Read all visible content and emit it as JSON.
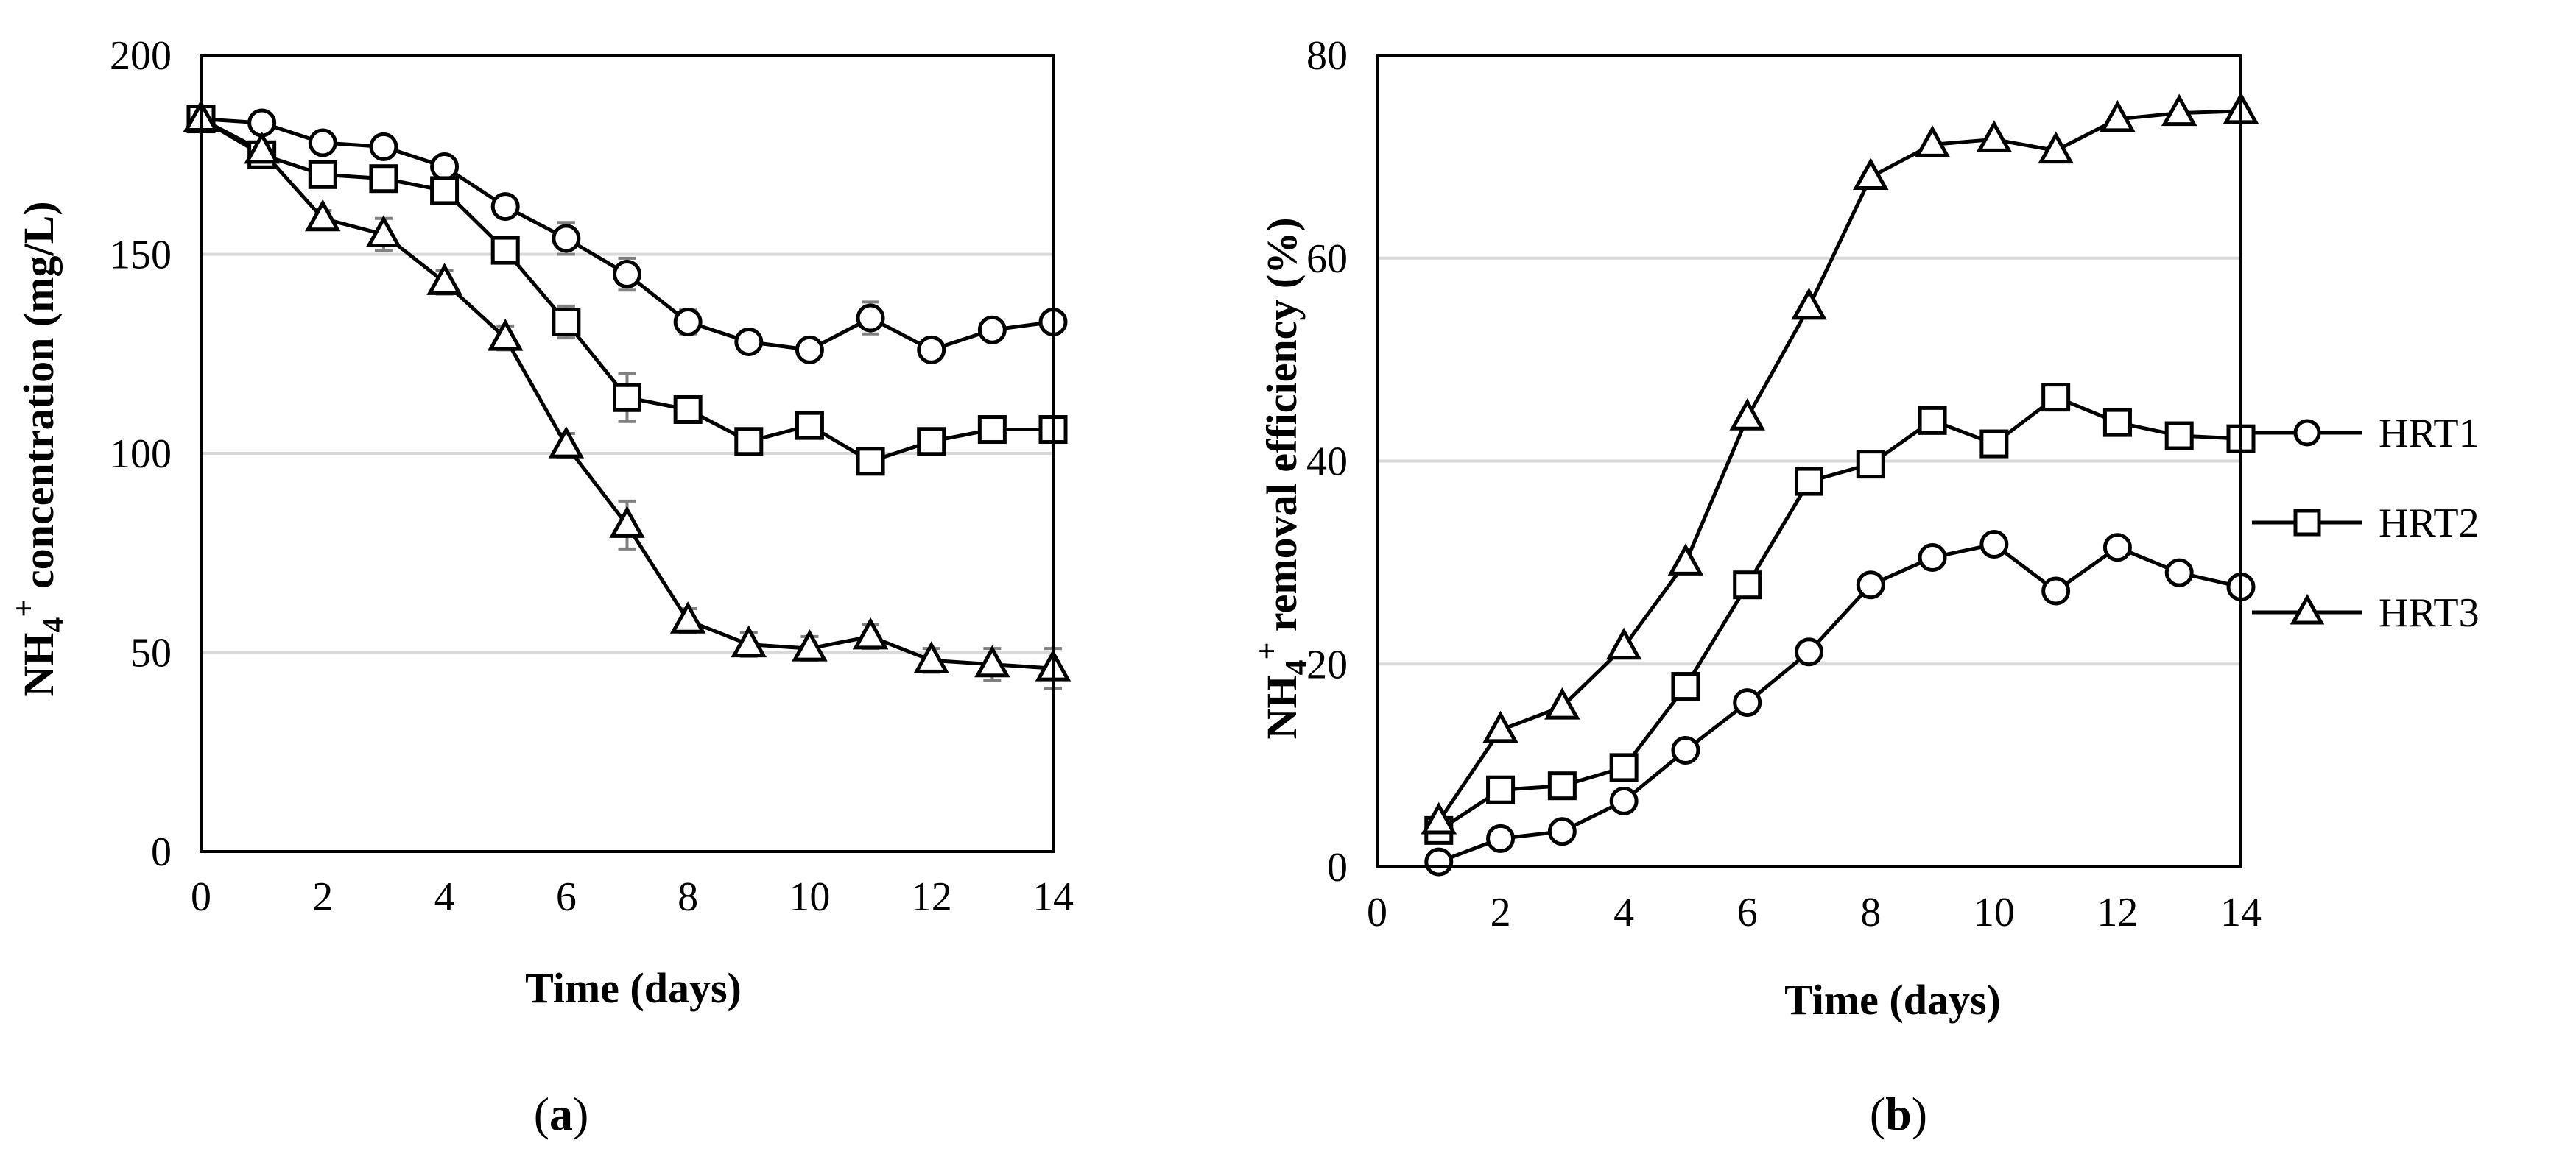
{
  "chart_data": [
    {
      "type": "line",
      "panel": "(a)",
      "panel_letter": "a",
      "xlabel": "Time (days)",
      "ylabel": "NH4+ concentration (mg/L)",
      "ylabel_parts": {
        "main": "NH",
        "sub": "4",
        "sup": "+",
        "rest": " concentration (mg/L)"
      },
      "xlim": [
        0,
        14
      ],
      "ylim": [
        0,
        200
      ],
      "xticks": [
        0,
        2,
        4,
        6,
        8,
        10,
        12,
        14
      ],
      "yticks": [
        0,
        50,
        100,
        150,
        200
      ],
      "grid": "horizontal",
      "x": [
        0,
        1,
        2,
        3,
        4,
        5,
        6,
        7,
        8,
        9,
        10,
        11,
        12,
        13,
        14
      ],
      "series": [
        {
          "name": "HRT1",
          "marker": "circle",
          "values": [
            184,
            183,
            178,
            177,
            172,
            162,
            154,
            145,
            133,
            128,
            126,
            134,
            126,
            131,
            133
          ],
          "errors": [
            2,
            1.5,
            2,
            2,
            2,
            2,
            4,
            4,
            3,
            2,
            2,
            4,
            2,
            2,
            2
          ]
        },
        {
          "name": "HRT2",
          "marker": "square",
          "values": [
            184,
            175,
            170,
            169,
            166,
            151,
            133,
            114,
            111,
            103,
            107,
            98,
            103,
            106,
            106
          ],
          "errors": [
            2,
            2,
            2,
            2,
            2,
            3,
            4,
            6,
            2,
            3,
            2,
            2,
            2,
            3,
            3
          ]
        },
        {
          "name": "HRT3",
          "marker": "triangle",
          "values": [
            184,
            176,
            159,
            155,
            143,
            129,
            102,
            82,
            58,
            52,
            51,
            54,
            48,
            47,
            46
          ],
          "errors": [
            2,
            2,
            2,
            4,
            3,
            3,
            3,
            6,
            3,
            3,
            3,
            3,
            3,
            4,
            5
          ]
        }
      ]
    },
    {
      "type": "line",
      "panel": "(b)",
      "panel_letter": "b",
      "xlabel": "Time (days)",
      "ylabel": "NH4+ removal efficiency (%)",
      "ylabel_parts": {
        "main": "NH",
        "sub": "4",
        "sup": "+",
        "rest": " removal efficiency (%)"
      },
      "xlim": [
        0,
        14
      ],
      "ylim": [
        0,
        80
      ],
      "xticks": [
        0,
        2,
        4,
        6,
        8,
        10,
        12,
        14
      ],
      "yticks": [
        0,
        20,
        40,
        60,
        80
      ],
      "grid": "horizontal",
      "x": [
        1,
        2,
        3,
        4,
        5,
        6,
        7,
        8,
        9,
        10,
        11,
        12,
        13,
        14
      ],
      "series": [
        {
          "name": "HRT1",
          "marker": "circle",
          "values": [
            0.5,
            2.8,
            3.5,
            6.5,
            11.5,
            16.2,
            21.2,
            27.8,
            30.5,
            31.8,
            27.2,
            31.5,
            29,
            27.6
          ]
        },
        {
          "name": "HRT2",
          "marker": "square",
          "values": [
            3.6,
            7.6,
            8,
            9.8,
            17.8,
            27.8,
            38,
            39.7,
            44,
            41.7,
            46.3,
            43.8,
            42.5,
            42.2
          ]
        },
        {
          "name": "HRT3",
          "marker": "triangle",
          "values": [
            4.5,
            13.5,
            15.8,
            21.7,
            30,
            44.3,
            55.2,
            68,
            71.2,
            71.7,
            70.6,
            73.7,
            74.3,
            74.5
          ]
        }
      ]
    }
  ],
  "legend": {
    "placement": "right",
    "items": [
      {
        "label": "HRT1",
        "marker": "circle"
      },
      {
        "label": "HRT2",
        "marker": "square"
      },
      {
        "label": "HRT3",
        "marker": "triangle"
      }
    ]
  },
  "colors": {
    "line": "#000000",
    "marker_fill": "#ffffff",
    "grid": "#d9d9d9",
    "error_bar": "#808080"
  }
}
